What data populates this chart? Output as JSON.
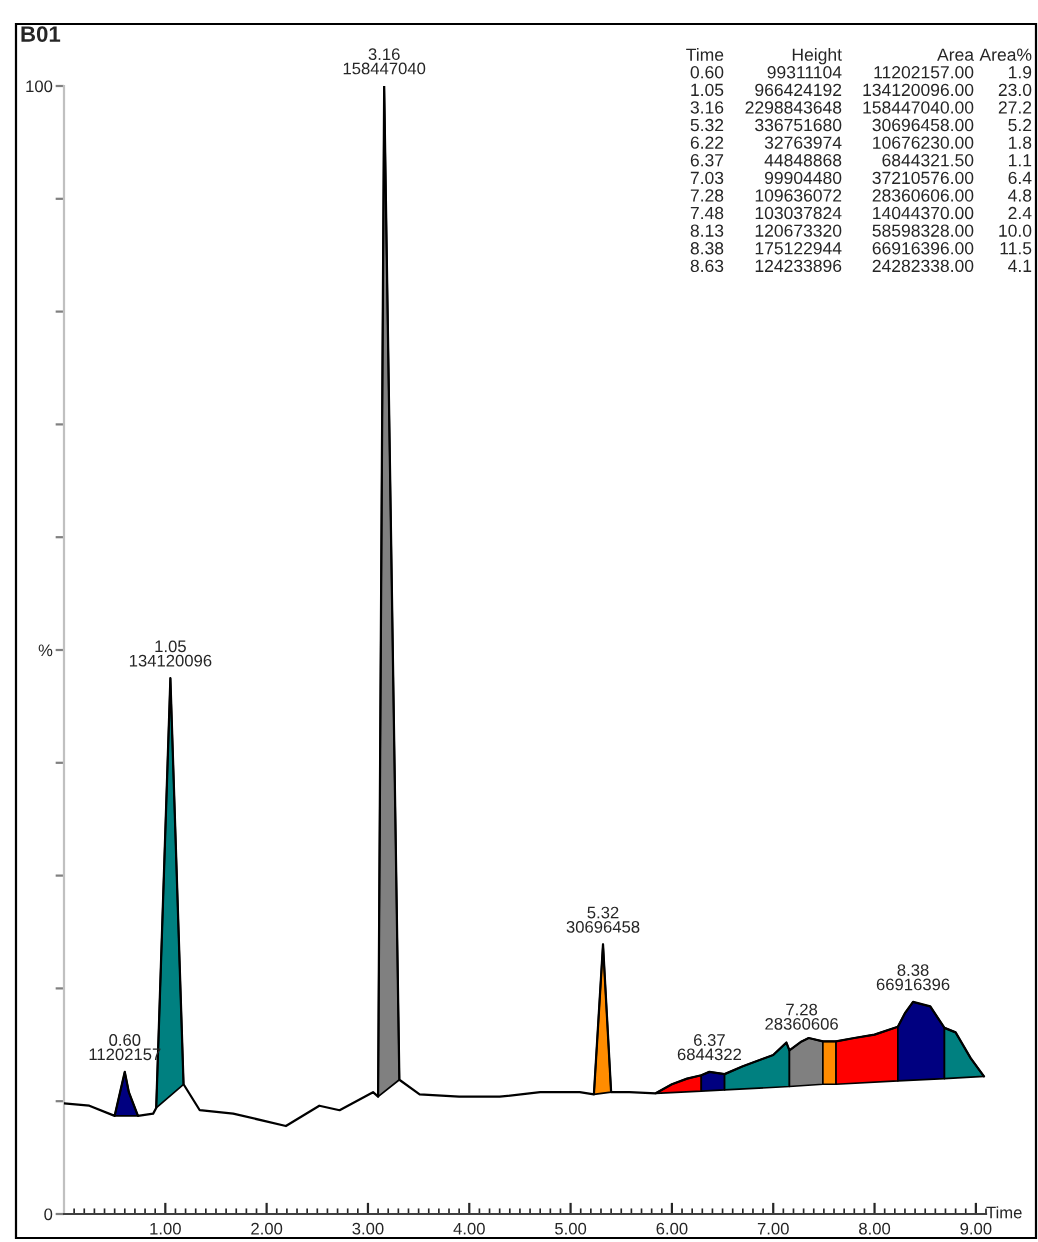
{
  "chart_data": {
    "type": "line",
    "title": "B01",
    "xlabel": "Time",
    "xlim": [
      0,
      9.1
    ],
    "ylim": [
      0,
      100
    ],
    "xticks": [
      {
        "value": 1,
        "label": "1.00"
      },
      {
        "value": 2,
        "label": "2.00"
      },
      {
        "value": 3,
        "label": "3.00"
      },
      {
        "value": 4,
        "label": "4.00"
      },
      {
        "value": 5,
        "label": "5.00"
      },
      {
        "value": 6,
        "label": "6.00"
      },
      {
        "value": 7,
        "label": "7.00"
      },
      {
        "value": 8,
        "label": "8.00"
      },
      {
        "value": 9,
        "label": "9.00"
      }
    ],
    "yticks": [
      0,
      {
        "value": 10,
        "label": null
      },
      {
        "value": 20,
        "label": null
      },
      {
        "value": 30,
        "label": null
      },
      {
        "value": 40,
        "label": null
      },
      {
        "value": 50,
        "label": "%"
      },
      {
        "value": 60,
        "label": null
      },
      {
        "value": 70,
        "label": null
      },
      {
        "value": 80,
        "label": null
      },
      {
        "value": 90,
        "label": null
      },
      100
    ],
    "grid": false,
    "marker": "none",
    "line_style": "solid",
    "series": [
      {
        "type": "area",
        "color": "#000080",
        "x": [
          0.5,
          0.6,
          0.64,
          0.73
        ],
        "values": [
          8.7,
          12.6,
          10.8,
          8.7
        ]
      },
      {
        "type": "area",
        "color": "#008080",
        "x": [
          0.91,
          1.05,
          1.18
        ],
        "values": [
          9.4,
          47.5,
          11.5
        ]
      },
      {
        "type": "area",
        "color": "#808080",
        "x": [
          3.1,
          3.16,
          3.31
        ],
        "values": [
          10.4,
          100,
          11.9
        ]
      },
      {
        "type": "area",
        "color": "#ff8c00",
        "x": [
          5.23,
          5.32,
          5.4
        ],
        "values": [
          10.6,
          23.9,
          10.8
        ]
      },
      {
        "type": "area",
        "color": "#ff0000",
        "x": [
          5.84,
          6.0,
          6.15,
          6.29,
          6.29
        ],
        "values": [
          10.7,
          11.5,
          12.0,
          12.3,
          10.9
        ]
      },
      {
        "type": "area",
        "color": "#000080",
        "x": [
          6.29,
          6.29,
          6.37,
          6.52,
          6.52
        ],
        "values": [
          10.9,
          12.3,
          12.6,
          12.4,
          11.0
        ]
      },
      {
        "type": "area",
        "color": "#008080",
        "x": [
          6.52,
          6.52,
          6.7,
          7.0,
          7.13,
          7.16,
          7.16
        ],
        "values": [
          11.0,
          12.4,
          13.1,
          14.1,
          15.2,
          14.5,
          11.3
        ]
      },
      {
        "type": "area",
        "color": "#808080",
        "x": [
          7.16,
          7.16,
          7.28,
          7.35,
          7.49,
          7.49
        ],
        "values": [
          11.3,
          14.5,
          15.3,
          15.6,
          15.3,
          11.5
        ]
      },
      {
        "type": "area",
        "color": "#ff8c00",
        "x": [
          7.49,
          7.49,
          7.62,
          7.62
        ],
        "values": [
          11.5,
          15.3,
          15.3,
          11.5
        ]
      },
      {
        "type": "area",
        "color": "#ff0000",
        "x": [
          7.62,
          7.62,
          7.8,
          8.0,
          8.23,
          8.23
        ],
        "values": [
          11.5,
          15.3,
          15.6,
          15.9,
          16.6,
          11.8
        ]
      },
      {
        "type": "area",
        "color": "#000080",
        "x": [
          8.23,
          8.23,
          8.3,
          8.38,
          8.55,
          8.69,
          8.69
        ],
        "values": [
          11.8,
          16.6,
          17.8,
          18.8,
          18.4,
          16.5,
          12.0
        ]
      },
      {
        "type": "area",
        "color": "#008080",
        "x": [
          8.69,
          8.69,
          8.8,
          8.95,
          9.08
        ],
        "values": [
          12.0,
          16.5,
          16.1,
          13.8,
          12.2
        ]
      },
      {
        "color": "#000000",
        "x": [
          0.0,
          0.25,
          0.5,
          0.6,
          0.64,
          0.73,
          0.88,
          0.91,
          1.05,
          1.18,
          1.34,
          1.67,
          2.19,
          2.52,
          2.72,
          3.05,
          3.1,
          3.16,
          3.31,
          3.51,
          3.9,
          4.3,
          4.7,
          5.09,
          5.23,
          5.32,
          5.4,
          5.58,
          5.84,
          6.0,
          6.15,
          6.29,
          6.37,
          6.52,
          6.7,
          7.0,
          7.13,
          7.16,
          7.28,
          7.35,
          7.49,
          7.62,
          7.8,
          8.0,
          8.23,
          8.3,
          8.38,
          8.55,
          8.69,
          8.8,
          8.95,
          9.08
        ],
        "values": [
          9.8,
          9.6,
          8.7,
          12.6,
          10.8,
          8.7,
          8.9,
          9.4,
          47.5,
          11.5,
          9.2,
          8.9,
          7.8,
          9.6,
          9.2,
          10.8,
          10.4,
          100,
          11.9,
          10.6,
          10.4,
          10.4,
          10.8,
          10.8,
          10.6,
          23.9,
          10.8,
          10.8,
          10.7,
          11.5,
          12.0,
          12.3,
          12.6,
          12.4,
          13.1,
          14.1,
          15.2,
          14.5,
          15.3,
          15.6,
          15.3,
          15.3,
          15.6,
          15.9,
          16.6,
          17.8,
          18.8,
          18.4,
          16.5,
          16.1,
          13.8,
          12.2
        ]
      }
    ],
    "annotations": [
      {
        "text": "0.60\n11202157",
        "x": 0.6,
        "y": 12.6
      },
      {
        "text": "1.05\n134120096",
        "x": 1.05,
        "y": 47.5
      },
      {
        "text": "3.16\n158447040",
        "x": 3.16,
        "y": 100
      },
      {
        "text": "5.32\n30696458",
        "x": 5.32,
        "y": 23.9
      },
      {
        "text": "6.37\n6844322",
        "x": 6.37,
        "y": 12.6
      },
      {
        "text": "7.28\n28360606",
        "x": 7.28,
        "y": 15.3
      },
      {
        "text": "8.38\n66916396",
        "x": 8.38,
        "y": 18.8
      },
      "Time Height Area Area%",
      "0.60 99311104 11202157.00 1.9",
      "1.05 966424192 134120096.00 23.0",
      "3.16 2298843648 158447040.00 27.2",
      "5.32 336751680 30696458.00 5.2",
      "6.22 32763974 10676230.00 1.8",
      "6.37 44848868 6844321.50 1.1",
      "7.03 99904480 37210576.00 6.4",
      "7.28 109636072 28360606.00 4.8",
      "7.48 103037824 14044370.00 2.4",
      "8.13 120673320 58598328.00 10.0",
      "8.38 175122944 66916396.00 11.5",
      "8.63 124233896 24282338.00 4.1"
    ]
  }
}
